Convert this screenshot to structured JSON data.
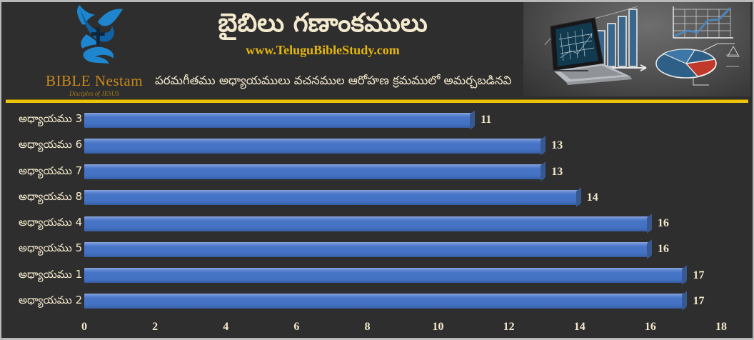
{
  "header": {
    "logo": {
      "brand": "BIBLE Nestam",
      "tagline": "Disciples of JESUS"
    },
    "title": "బైబిలు గణాంకములు",
    "website": "www.TeluguBibleStudy.com",
    "subtitle": "పరమగీతము అధ్యాయములు వచనముల ఆరోహణ క్రమములో అమర్చబడినవి"
  },
  "colors": {
    "background": "#2f2e2e",
    "frame_border": "#b9b9b9",
    "divider_yellow": "#ecc20b",
    "bar_blue": "#4472c4",
    "cream_text": "#f3e9cd",
    "gold_url": "#e5b70d",
    "brand_orange": "#c9891a",
    "logo_blue": "#1d86cf"
  },
  "chart_data": {
    "type": "bar",
    "orientation": "horizontal",
    "categories": [
      "అధ్యాయము 3",
      "అధ్యాయము 6",
      "అధ్యాయము 7",
      "అధ్యాయము 8",
      "అధ్యాయము 4",
      "అధ్యాయము 5",
      "అధ్యాయము 1",
      "అధ్యాయము 2"
    ],
    "values": [
      11,
      13,
      13,
      14,
      16,
      16,
      17,
      17
    ],
    "data_labels": [
      "11",
      "13",
      "13",
      "14",
      "16",
      "16",
      "17",
      "17"
    ],
    "x_ticks": [
      "0",
      "2",
      "4",
      "6",
      "8",
      "10",
      "12",
      "14",
      "16",
      "18"
    ],
    "xlim": [
      0,
      18
    ],
    "title": "బైబిలు గణాంకములు",
    "xlabel": "",
    "ylabel": "",
    "grid": false,
    "legend": false,
    "sort": "ascending by value"
  }
}
